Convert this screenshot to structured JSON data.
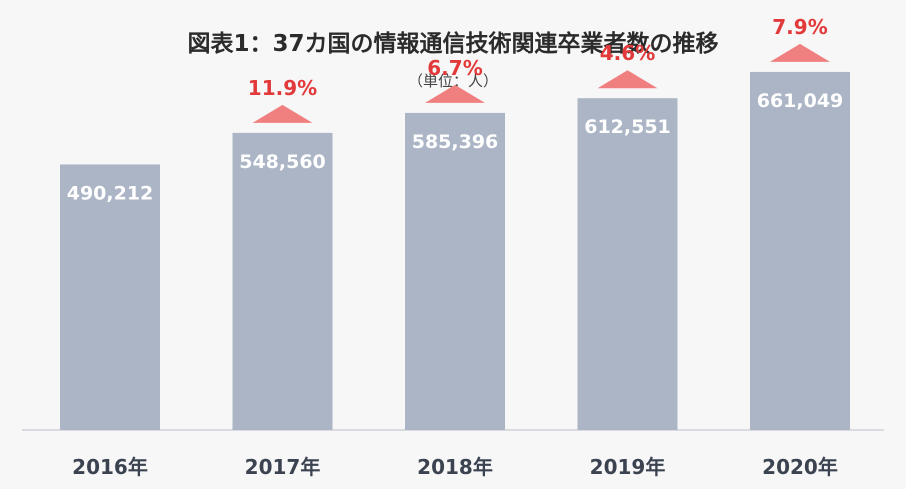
{
  "chart_data": {
    "type": "bar",
    "title": "図表1：37カ国の情報通信技術関連卒業者数の推移",
    "subtitle": "（単位：人）",
    "categories": [
      "2016年",
      "2017年",
      "2018年",
      "2019年",
      "2020年"
    ],
    "values": [
      490212,
      548560,
      585396,
      612551,
      661049
    ],
    "value_labels": [
      "490,212",
      "548,560",
      "585,396",
      "612,551",
      "661,049"
    ],
    "growth_labels": [
      "",
      "11.9%",
      "6.7%",
      "4.6%",
      "7.9%"
    ],
    "ylim": [
      0,
      720000
    ],
    "grid": false,
    "legend": "none",
    "colors": {
      "bar": "#abb5c6",
      "growth_arrow": "#f08080",
      "growth_text": "#e23a3a",
      "axis_line": "#cfd2d8"
    }
  }
}
